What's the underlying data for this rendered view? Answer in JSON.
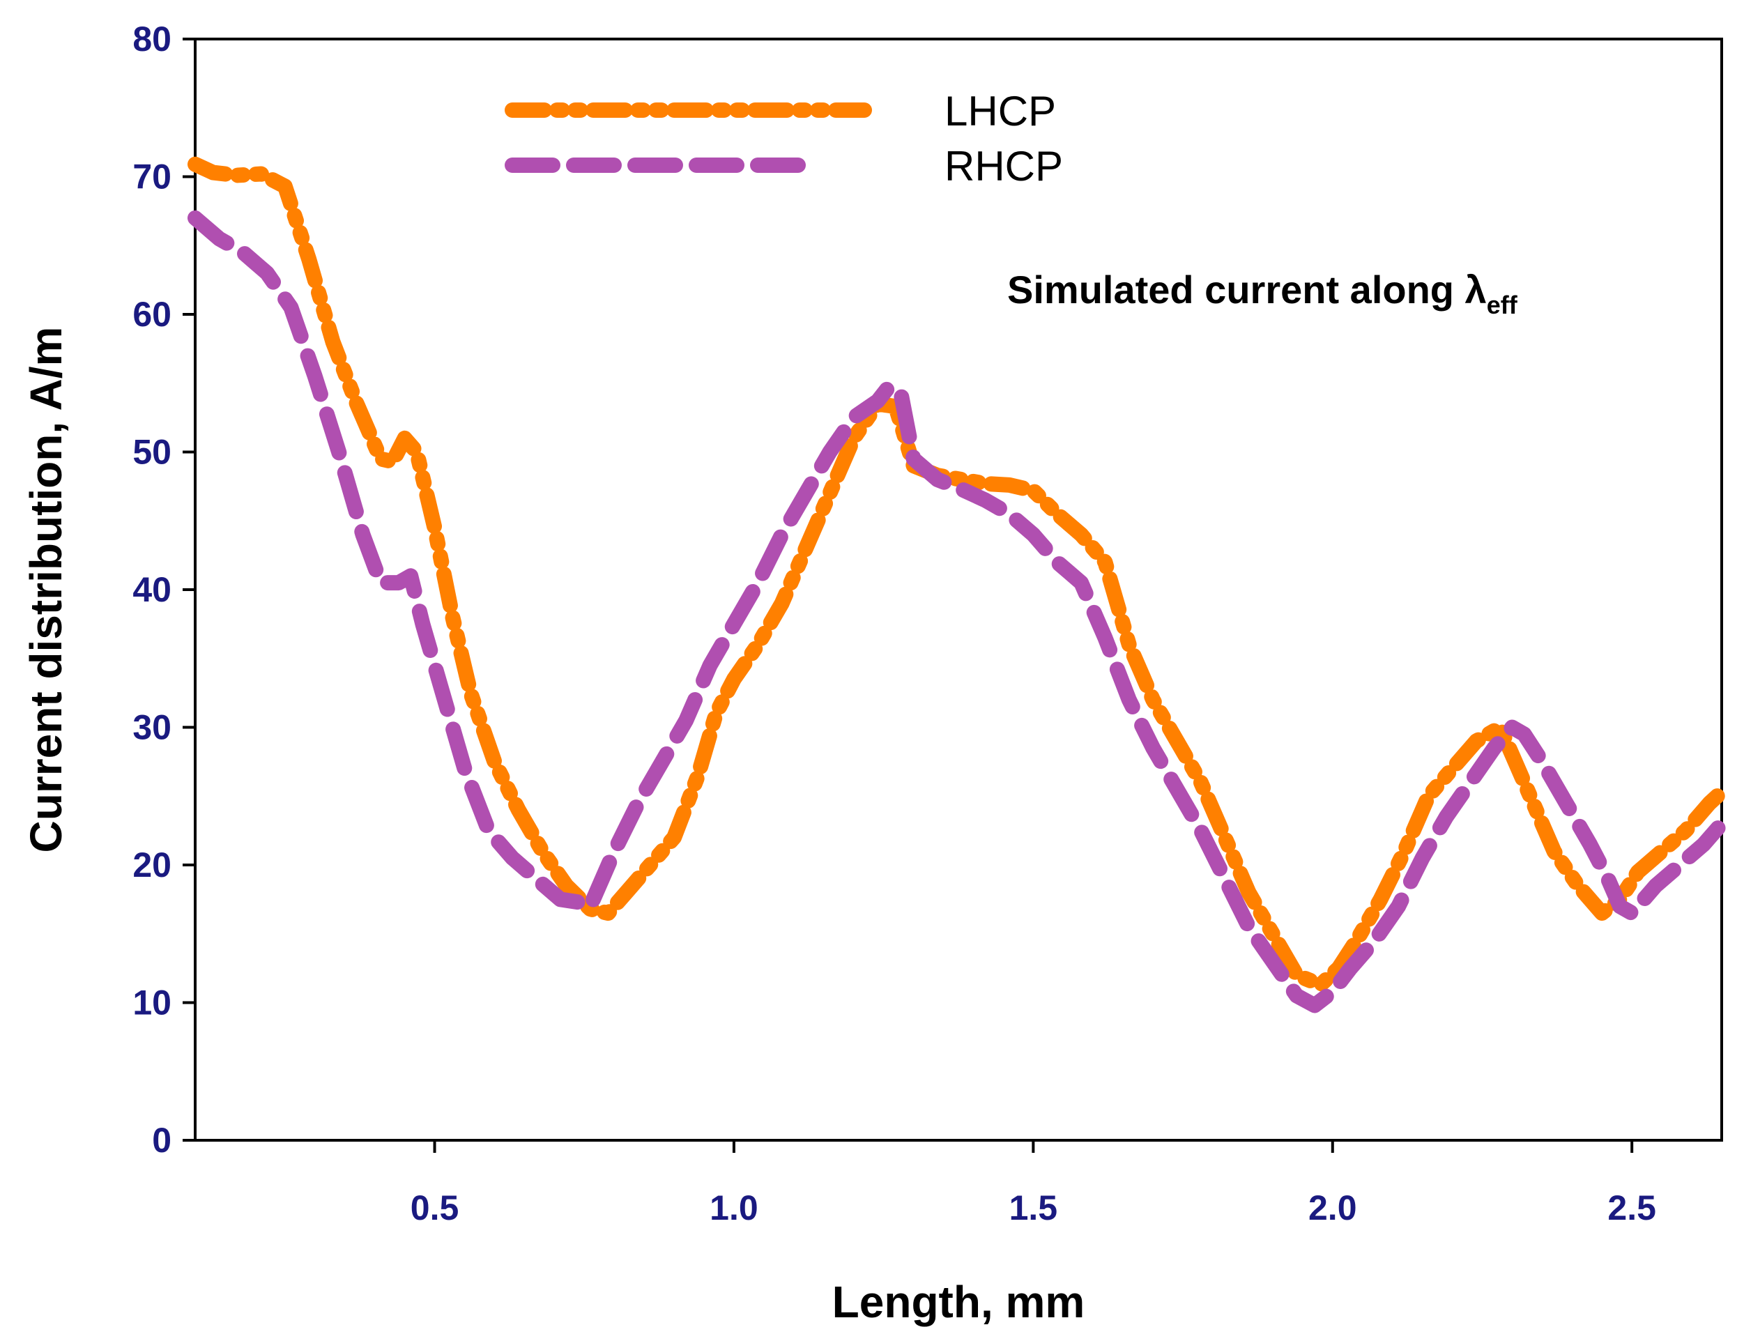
{
  "chart_data": {
    "type": "line",
    "title": "",
    "xlabel": "Length, mm",
    "ylabel": "Current distribution, A/m",
    "xlim": [
      0.1,
      2.65
    ],
    "ylim": [
      0,
      80
    ],
    "xticks": [
      0.5,
      1.0,
      1.5,
      2.0,
      2.5
    ],
    "xtick_labels": [
      "0.5",
      "1.0",
      "1.5",
      "2.0",
      "2.5"
    ],
    "yticks": [
      0,
      10,
      20,
      30,
      40,
      50,
      60,
      70,
      80
    ],
    "ytick_labels": [
      "0",
      "10",
      "20",
      "30",
      "40",
      "50",
      "60",
      "70",
      "80"
    ],
    "grid": false,
    "legend_position": "top-center",
    "annotation": {
      "text": "Simulated current along  λ",
      "subscript": "eff"
    },
    "series": [
      {
        "name": "LHCP",
        "color": "#ff8000",
        "style": "dash-dot-dot",
        "x": [
          0.1,
          0.13,
          0.17,
          0.21,
          0.25,
          0.29,
          0.33,
          0.37,
          0.41,
          0.43,
          0.45,
          0.47,
          0.5,
          0.53,
          0.56,
          0.6,
          0.64,
          0.68,
          0.72,
          0.76,
          0.79,
          0.82,
          0.86,
          0.9,
          0.94,
          0.97,
          1.0,
          1.04,
          1.08,
          1.12,
          1.16,
          1.2,
          1.24,
          1.27,
          1.3,
          1.34,
          1.38,
          1.42,
          1.46,
          1.5,
          1.54,
          1.58,
          1.62,
          1.66,
          1.7,
          1.74,
          1.78,
          1.82,
          1.86,
          1.9,
          1.94,
          1.98,
          2.01,
          2.04,
          2.08,
          2.12,
          2.16,
          2.2,
          2.24,
          2.28,
          2.3,
          2.33,
          2.37,
          2.41,
          2.45,
          2.48,
          2.51,
          2.55,
          2.59,
          2.63,
          2.65
        ],
        "values": [
          70.9,
          70.3,
          70.1,
          70.2,
          69.3,
          64.0,
          58.0,
          53.5,
          49.5,
          49.3,
          51.0,
          50.0,
          44.5,
          38.0,
          32.5,
          27.5,
          24.0,
          21.0,
          18.5,
          16.8,
          16.5,
          18.0,
          20.0,
          22.0,
          26.5,
          31.0,
          33.5,
          36.0,
          39.0,
          43.0,
          47.0,
          51.0,
          53.5,
          53.3,
          49.0,
          48.3,
          48.0,
          47.7,
          47.6,
          47.2,
          45.5,
          44.0,
          42.0,
          36.0,
          32.0,
          29.0,
          26.0,
          22.0,
          18.0,
          15.0,
          12.0,
          11.3,
          12.5,
          14.5,
          17.5,
          21.0,
          25.0,
          27.0,
          29.0,
          30.0,
          28.0,
          25.0,
          21.0,
          18.5,
          16.5,
          17.5,
          19.5,
          21.0,
          22.5,
          24.5,
          25.3
        ]
      },
      {
        "name": "RHCP",
        "color": "#b04fb0",
        "style": "dashed",
        "x": [
          0.1,
          0.14,
          0.18,
          0.22,
          0.26,
          0.3,
          0.34,
          0.38,
          0.41,
          0.44,
          0.46,
          0.48,
          0.51,
          0.55,
          0.59,
          0.63,
          0.67,
          0.71,
          0.74,
          0.76,
          0.78,
          0.8,
          0.84,
          0.88,
          0.92,
          0.96,
          1.0,
          1.04,
          1.08,
          1.12,
          1.16,
          1.2,
          1.24,
          1.26,
          1.28,
          1.3,
          1.34,
          1.38,
          1.42,
          1.46,
          1.5,
          1.54,
          1.58,
          1.62,
          1.66,
          1.7,
          1.74,
          1.78,
          1.82,
          1.86,
          1.9,
          1.94,
          1.97,
          2.0,
          2.03,
          2.07,
          2.11,
          2.15,
          2.19,
          2.23,
          2.27,
          2.3,
          2.32,
          2.35,
          2.39,
          2.43,
          2.46,
          2.48,
          2.5,
          2.54,
          2.58,
          2.62,
          2.65
        ],
        "values": [
          67.0,
          65.5,
          64.5,
          63.0,
          60.5,
          55.5,
          50.0,
          44.0,
          40.5,
          40.5,
          41.0,
          37.5,
          33.0,
          27.0,
          22.5,
          20.5,
          19.0,
          17.5,
          17.3,
          17.0,
          19.0,
          21.0,
          24.5,
          27.5,
          30.5,
          34.5,
          37.5,
          40.5,
          44.0,
          47.0,
          50.0,
          52.5,
          53.7,
          54.8,
          54.0,
          49.5,
          48.0,
          47.3,
          46.5,
          45.5,
          44.0,
          42.0,
          40.5,
          36.5,
          32.0,
          28.5,
          25.5,
          22.5,
          19.0,
          15.5,
          13.0,
          10.5,
          9.8,
          10.8,
          12.5,
          14.5,
          17.0,
          20.5,
          23.5,
          26.0,
          28.5,
          30.0,
          29.5,
          27.5,
          24.5,
          21.5,
          19.0,
          17.0,
          16.5,
          18.5,
          20.0,
          21.5,
          23.0
        ]
      }
    ]
  }
}
